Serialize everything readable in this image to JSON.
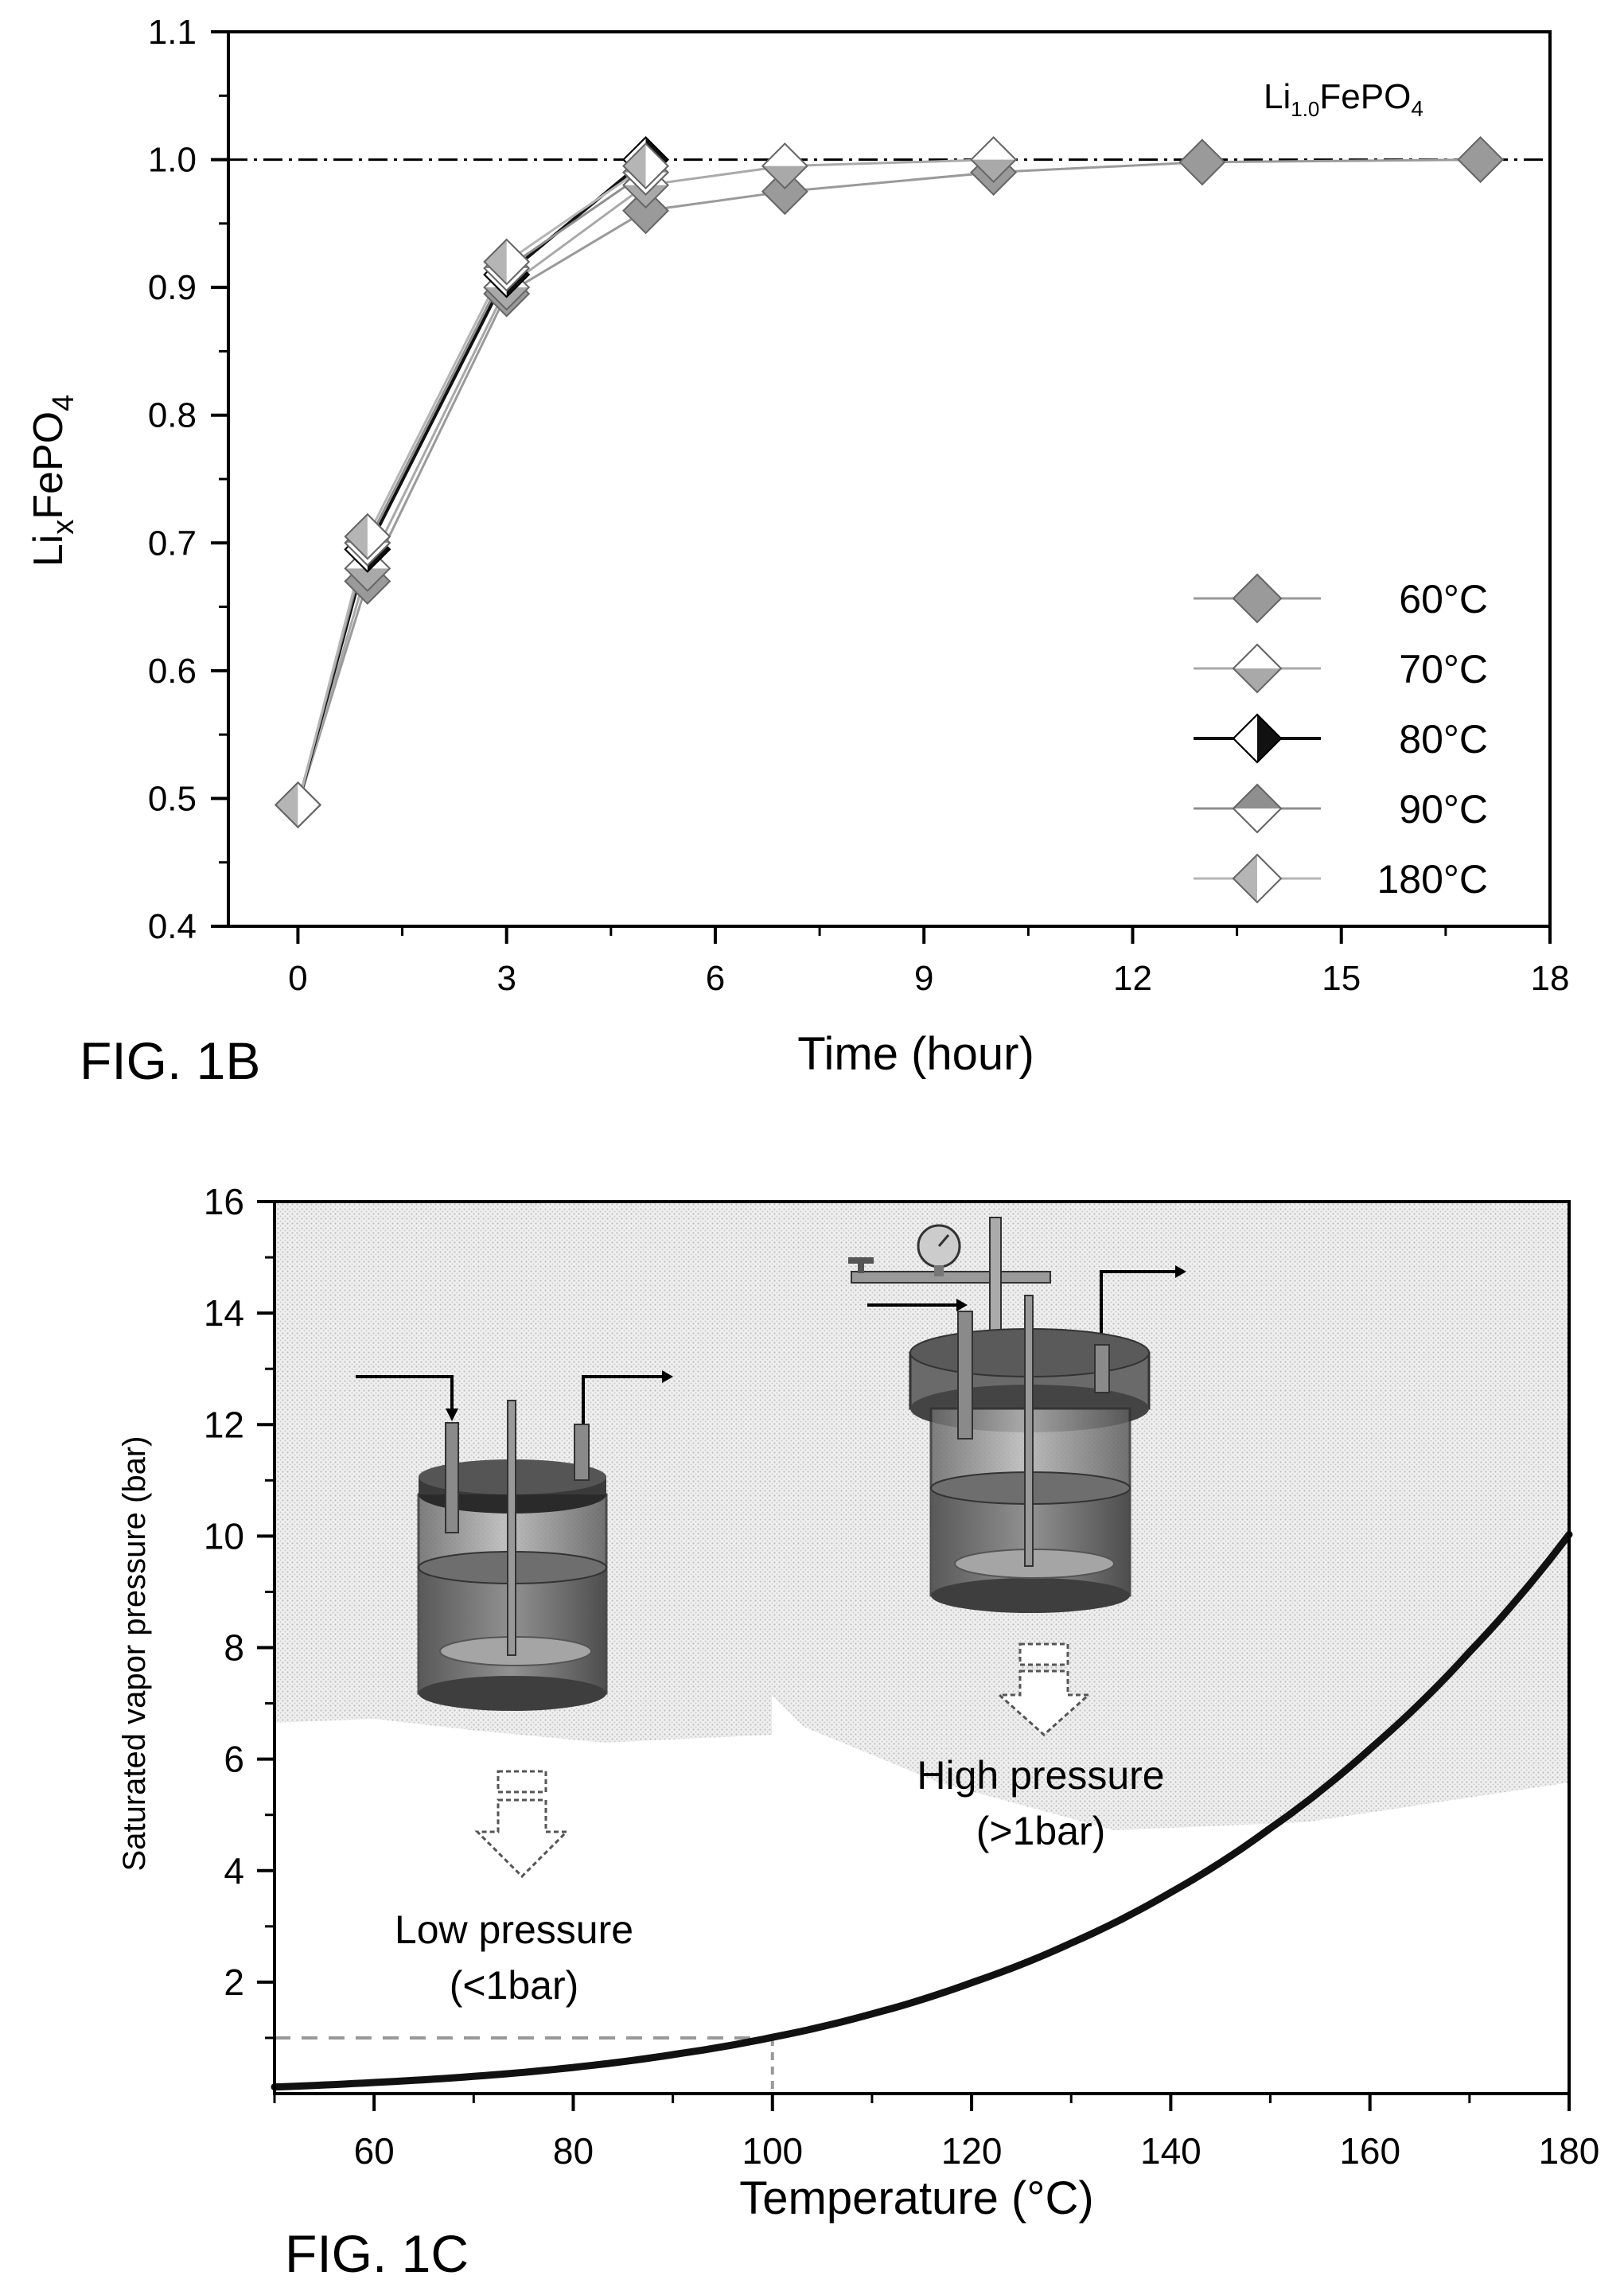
{
  "chart_data": [
    {
      "type": "line",
      "figure_label": "FIG. 1B",
      "annotation": {
        "base": "Li",
        "sub": "1.0",
        "rest": "FePO",
        "sub2": "4"
      },
      "xlabel": "Time (hour)",
      "ylabel": {
        "base": "Li",
        "sub": "x",
        "rest": "FePO",
        "sub2": "4"
      },
      "xlim": [
        -1,
        18
      ],
      "ylim": [
        0.4,
        1.1
      ],
      "xticks": [
        0,
        3,
        6,
        9,
        12,
        15,
        18
      ],
      "yticks": [
        0.4,
        0.5,
        0.6,
        0.7,
        0.8,
        0.9,
        1.0,
        1.1
      ],
      "xtick_labels": [
        "0",
        "3",
        "6",
        "9",
        "12",
        "15",
        "18"
      ],
      "ytick_labels": [
        "0.4",
        "0.5",
        "0.6",
        "0.7",
        "0.8",
        "0.9",
        "1.0",
        "1.1"
      ],
      "reference_line": {
        "y": 1.0,
        "style": "dash-dot"
      },
      "legend_position": "bottom-right",
      "series": [
        {
          "name": "60°C",
          "marker": "diamond-full",
          "color": "#9a9a9a",
          "x": [
            0,
            1,
            3,
            5,
            7,
            10,
            13,
            17
          ],
          "y": [
            0.495,
            0.67,
            0.895,
            0.96,
            0.975,
            0.99,
            0.998,
            1.0
          ]
        },
        {
          "name": "70°C",
          "marker": "diamond-bottom",
          "color": "#a9a9a9",
          "x": [
            0,
            1,
            3,
            5,
            7,
            10
          ],
          "y": [
            0.495,
            0.68,
            0.9,
            0.98,
            0.995,
            1.0
          ]
        },
        {
          "name": "80°C",
          "marker": "diamond-right",
          "color": "#111111",
          "x": [
            0,
            1,
            3,
            5
          ],
          "y": [
            0.495,
            0.695,
            0.91,
            1.0
          ]
        },
        {
          "name": "90°C",
          "marker": "diamond-top",
          "color": "#8f8f8f",
          "x": [
            0,
            1,
            3,
            5
          ],
          "y": [
            0.495,
            0.7,
            0.915,
            0.99
          ]
        },
        {
          "name": "180°C",
          "marker": "diamond-left",
          "color": "#b5b5b5",
          "x": [
            0,
            1,
            3,
            5
          ],
          "y": [
            0.495,
            0.705,
            0.92,
            0.995
          ]
        }
      ]
    },
    {
      "type": "line",
      "figure_label": "FIG. 1C",
      "xlabel": "Temperature (°C)",
      "ylabel": "Saturated vapor pressure (bar)",
      "xlim": [
        50,
        180
      ],
      "ylim": [
        0,
        16
      ],
      "xticks": [
        60,
        80,
        100,
        120,
        140,
        160,
        180
      ],
      "yticks": [
        2,
        4,
        6,
        8,
        10,
        12,
        14,
        16
      ],
      "xtick_labels": [
        "60",
        "80",
        "100",
        "120",
        "140",
        "160",
        "180"
      ],
      "ytick_labels": [
        "2",
        "4",
        "6",
        "8",
        "10",
        "12",
        "14",
        "16"
      ],
      "reference_lines": [
        {
          "y": 1,
          "x_to": 100,
          "style": "dashed"
        },
        {
          "x": 100,
          "y_to": 1,
          "style": "dashed"
        }
      ],
      "series": [
        {
          "name": "",
          "x": [
            50,
            60,
            70,
            80,
            90,
            100,
            110,
            120,
            130,
            140,
            150,
            160,
            170,
            180
          ],
          "y": [
            0.12,
            0.2,
            0.31,
            0.47,
            0.7,
            1.01,
            1.43,
            1.99,
            2.7,
            3.61,
            4.76,
            6.18,
            7.92,
            10.03
          ]
        }
      ],
      "annotations": [
        {
          "line1": "Low pressure",
          "line2": "(<1bar)"
        },
        {
          "line1": "High pressure",
          "line2": "(>1bar)"
        }
      ]
    }
  ]
}
